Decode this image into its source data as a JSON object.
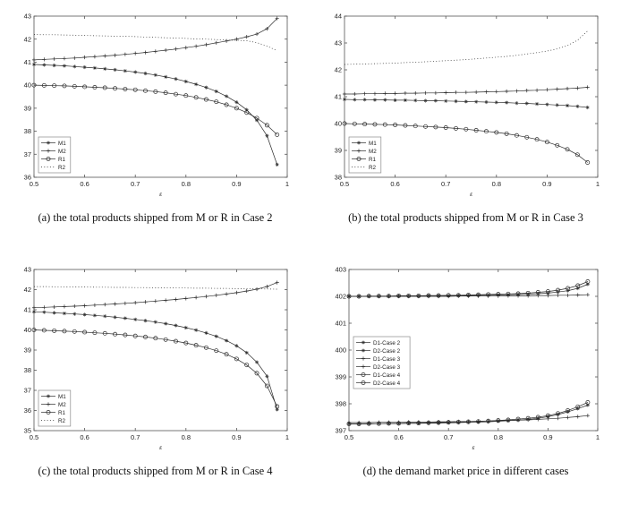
{
  "panels": [
    {
      "caption": "(a)  the total products shipped from M or R in Case 2"
    },
    {
      "caption": "(b)  the total products shipped from M or R in Case 3"
    },
    {
      "caption": "(c)  the total products shipped from M or R in Case 4"
    },
    {
      "caption": "(d)  the demand market price in different cases"
    }
  ],
  "colors": {
    "line": "#2b2b2b",
    "axis": "#555555",
    "legend_border": "#8a8a8a"
  },
  "chart_data": [
    {
      "type": "line",
      "title": "",
      "xlabel": "ε",
      "ylabel": "",
      "xlim": [
        0.5,
        1
      ],
      "ylim": [
        36,
        43
      ],
      "xticks": [
        0.5,
        0.6,
        0.7,
        0.8,
        0.9,
        1
      ],
      "xtick_labels": [
        "0.5",
        "0.6",
        "0.7",
        "0.8",
        "0.9",
        "1"
      ],
      "yticks": [
        36,
        37,
        38,
        39,
        40,
        41,
        42,
        43
      ],
      "grid": false,
      "legend_pos": "sw",
      "x": [
        0.5,
        0.52,
        0.54,
        0.56,
        0.58,
        0.6,
        0.62,
        0.64,
        0.66,
        0.68,
        0.7,
        0.72,
        0.74,
        0.76,
        0.78,
        0.8,
        0.82,
        0.84,
        0.86,
        0.88,
        0.9,
        0.92,
        0.94,
        0.96,
        0.98
      ],
      "series": [
        {
          "name": "M1",
          "marker": "asterisk",
          "line": "solid",
          "values": [
            40.9,
            40.88,
            40.86,
            40.84,
            40.81,
            40.78,
            40.75,
            40.71,
            40.67,
            40.62,
            40.57,
            40.51,
            40.44,
            40.36,
            40.27,
            40.16,
            40.04,
            39.9,
            39.73,
            39.52,
            39.26,
            38.93,
            38.48,
            37.8,
            36.55
          ]
        },
        {
          "name": "M2",
          "marker": "plus",
          "line": "solid",
          "values": [
            41.1,
            41.12,
            41.14,
            41.16,
            41.18,
            41.21,
            41.24,
            41.27,
            41.3,
            41.34,
            41.38,
            41.42,
            41.47,
            41.52,
            41.57,
            41.63,
            41.69,
            41.76,
            41.84,
            41.92,
            42.0,
            42.1,
            42.22,
            42.45,
            42.9
          ]
        },
        {
          "name": "R1",
          "marker": "circle",
          "line": "solid",
          "values": [
            40.0,
            39.99,
            39.98,
            39.97,
            39.95,
            39.93,
            39.91,
            39.89,
            39.86,
            39.83,
            39.8,
            39.76,
            39.72,
            39.67,
            39.61,
            39.55,
            39.47,
            39.38,
            39.28,
            39.15,
            39.0,
            38.81,
            38.57,
            38.26,
            37.85
          ]
        },
        {
          "name": "R2",
          "marker": "none",
          "line": "dotted",
          "values": [
            42.2,
            42.19,
            42.19,
            42.18,
            42.17,
            42.16,
            42.15,
            42.14,
            42.13,
            42.12,
            42.11,
            42.09,
            42.08,
            42.06,
            42.05,
            42.03,
            42.01,
            42.0,
            41.98,
            41.96,
            41.95,
            41.93,
            41.85,
            41.7,
            41.5
          ]
        }
      ]
    },
    {
      "type": "line",
      "title": "",
      "xlabel": "ε",
      "ylabel": "",
      "xlim": [
        0.5,
        1
      ],
      "ylim": [
        38,
        44
      ],
      "xticks": [
        0.5,
        0.6,
        0.7,
        0.8,
        0.9,
        1
      ],
      "xtick_labels": [
        "0.5",
        "0.6",
        "0.7",
        "0.8",
        "0.9",
        "1"
      ],
      "yticks": [
        38,
        39,
        40,
        41,
        42,
        43,
        44
      ],
      "grid": false,
      "legend_pos": "sw",
      "x": [
        0.5,
        0.52,
        0.54,
        0.56,
        0.58,
        0.6,
        0.62,
        0.64,
        0.66,
        0.68,
        0.7,
        0.72,
        0.74,
        0.76,
        0.78,
        0.8,
        0.82,
        0.84,
        0.86,
        0.88,
        0.9,
        0.92,
        0.94,
        0.96,
        0.98
      ],
      "series": [
        {
          "name": "M1",
          "marker": "asterisk",
          "line": "solid",
          "values": [
            40.9,
            40.89,
            40.89,
            40.88,
            40.88,
            40.87,
            40.87,
            40.86,
            40.85,
            40.85,
            40.84,
            40.83,
            40.82,
            40.81,
            40.8,
            40.79,
            40.78,
            40.76,
            40.75,
            40.73,
            40.71,
            40.69,
            40.67,
            40.64,
            40.6
          ]
        },
        {
          "name": "M2",
          "marker": "plus",
          "line": "solid",
          "values": [
            41.1,
            41.1,
            41.11,
            41.11,
            41.12,
            41.12,
            41.13,
            41.13,
            41.14,
            41.14,
            41.15,
            41.16,
            41.16,
            41.17,
            41.18,
            41.19,
            41.2,
            41.21,
            41.23,
            41.24,
            41.26,
            41.28,
            41.3,
            41.32,
            41.35
          ]
        },
        {
          "name": "R1",
          "marker": "circle",
          "line": "solid",
          "values": [
            40.0,
            39.99,
            39.98,
            39.97,
            39.96,
            39.95,
            39.93,
            39.91,
            39.89,
            39.87,
            39.85,
            39.82,
            39.79,
            39.75,
            39.71,
            39.67,
            39.62,
            39.56,
            39.49,
            39.41,
            39.31,
            39.19,
            39.04,
            38.84,
            38.55
          ]
        },
        {
          "name": "R2",
          "marker": "none",
          "line": "dotted",
          "values": [
            42.2,
            42.21,
            42.22,
            42.23,
            42.24,
            42.25,
            42.27,
            42.28,
            42.3,
            42.32,
            42.34,
            42.36,
            42.38,
            42.41,
            42.44,
            42.47,
            42.5,
            42.54,
            42.59,
            42.64,
            42.7,
            42.78,
            42.9,
            43.1,
            43.45
          ]
        }
      ]
    },
    {
      "type": "line",
      "title": "",
      "xlabel": "ε",
      "ylabel": "",
      "xlim": [
        0.5,
        1
      ],
      "ylim": [
        35,
        43
      ],
      "xticks": [
        0.5,
        0.6,
        0.7,
        0.8,
        0.9,
        1
      ],
      "xtick_labels": [
        "0.5",
        "0.6",
        "0.7",
        "0.8",
        "0.9",
        "1"
      ],
      "yticks": [
        35,
        36,
        37,
        38,
        39,
        40,
        41,
        42,
        43
      ],
      "grid": false,
      "legend_pos": "sw",
      "x": [
        0.5,
        0.52,
        0.54,
        0.56,
        0.58,
        0.6,
        0.62,
        0.64,
        0.66,
        0.68,
        0.7,
        0.72,
        0.74,
        0.76,
        0.78,
        0.8,
        0.82,
        0.84,
        0.86,
        0.88,
        0.9,
        0.92,
        0.94,
        0.96,
        0.98
      ],
      "series": [
        {
          "name": "M1",
          "marker": "asterisk",
          "line": "solid",
          "values": [
            40.9,
            40.88,
            40.85,
            40.82,
            40.79,
            40.76,
            40.72,
            40.68,
            40.63,
            40.58,
            40.52,
            40.46,
            40.39,
            40.31,
            40.22,
            40.11,
            39.99,
            39.85,
            39.68,
            39.47,
            39.21,
            38.87,
            38.4,
            37.7,
            36.05
          ]
        },
        {
          "name": "M2",
          "marker": "plus",
          "line": "solid",
          "values": [
            41.1,
            41.12,
            41.14,
            41.16,
            41.18,
            41.2,
            41.23,
            41.26,
            41.29,
            41.32,
            41.35,
            41.39,
            41.43,
            41.47,
            41.51,
            41.56,
            41.61,
            41.66,
            41.72,
            41.78,
            41.85,
            41.93,
            42.02,
            42.15,
            42.35
          ]
        },
        {
          "name": "R1",
          "marker": "circle",
          "line": "solid",
          "values": [
            40.0,
            39.98,
            39.96,
            39.94,
            39.92,
            39.89,
            39.86,
            39.83,
            39.79,
            39.75,
            39.7,
            39.65,
            39.59,
            39.52,
            39.44,
            39.35,
            39.24,
            39.12,
            38.97,
            38.79,
            38.56,
            38.26,
            37.85,
            37.22,
            36.2
          ]
        },
        {
          "name": "R2",
          "marker": "none",
          "line": "dotted",
          "values": [
            42.15,
            42.15,
            42.14,
            42.14,
            42.13,
            42.13,
            42.12,
            42.12,
            42.11,
            42.11,
            42.1,
            42.1,
            42.09,
            42.09,
            42.08,
            42.08,
            42.07,
            42.07,
            42.06,
            42.06,
            42.05,
            42.05,
            42.04,
            42.03,
            42.02
          ]
        }
      ]
    },
    {
      "type": "line",
      "title": "",
      "xlabel": "ε",
      "ylabel": "",
      "xlim": [
        0.5,
        1
      ],
      "ylim": [
        397,
        403
      ],
      "xticks": [
        0.5,
        0.6,
        0.7,
        0.8,
        0.9,
        1
      ],
      "xtick_labels": [
        "0.5",
        "0.6",
        "0.7",
        "0.8",
        "0.9",
        "1"
      ],
      "yticks": [
        397,
        398,
        399,
        400,
        401,
        402,
        403
      ],
      "grid": false,
      "legend_pos": "w",
      "x": [
        0.5,
        0.52,
        0.54,
        0.56,
        0.58,
        0.6,
        0.62,
        0.64,
        0.66,
        0.68,
        0.7,
        0.72,
        0.74,
        0.76,
        0.78,
        0.8,
        0.82,
        0.84,
        0.86,
        0.88,
        0.9,
        0.92,
        0.94,
        0.96,
        0.98
      ],
      "series": [
        {
          "name": "D1-Case 2",
          "marker": "asterisk",
          "line": "solid",
          "values": [
            402.0,
            402.0,
            402.0,
            402.0,
            402.0,
            402.01,
            402.01,
            402.01,
            402.02,
            402.02,
            402.02,
            402.03,
            402.03,
            402.04,
            402.04,
            402.05,
            402.06,
            402.07,
            402.08,
            402.1,
            402.12,
            402.16,
            402.21,
            402.3,
            402.45
          ]
        },
        {
          "name": "D2-Case 2",
          "marker": "asterisk",
          "line": "solid",
          "values": [
            397.25,
            397.25,
            397.25,
            397.26,
            397.26,
            397.26,
            397.27,
            397.27,
            397.28,
            397.28,
            397.29,
            397.3,
            397.31,
            397.32,
            397.33,
            397.35,
            397.37,
            397.39,
            397.42,
            397.46,
            397.52,
            397.6,
            397.7,
            397.82,
            397.95
          ]
        },
        {
          "name": "D1-Case 3",
          "marker": "plus",
          "line": "solid",
          "values": [
            402.0,
            402.0,
            402.0,
            402.0,
            402.0,
            402.0,
            402.0,
            402.0,
            402.0,
            402.0,
            402.0,
            402.01,
            402.01,
            402.01,
            402.01,
            402.01,
            402.02,
            402.02,
            402.02,
            402.03,
            402.03,
            402.04,
            402.04,
            402.05,
            402.06
          ]
        },
        {
          "name": "D2-Case 3",
          "marker": "plus",
          "line": "solid",
          "values": [
            397.3,
            397.3,
            397.3,
            397.31,
            397.31,
            397.31,
            397.32,
            397.32,
            397.32,
            397.33,
            397.33,
            397.34,
            397.34,
            397.35,
            397.36,
            397.37,
            397.38,
            397.39,
            397.4,
            397.42,
            397.44,
            397.46,
            397.49,
            397.52,
            397.56
          ]
        },
        {
          "name": "D1-Case 4",
          "marker": "circle",
          "line": "solid",
          "values": [
            402.0,
            402.0,
            402.01,
            402.01,
            402.01,
            402.02,
            402.02,
            402.02,
            402.03,
            402.03,
            402.04,
            402.04,
            402.05,
            402.06,
            402.07,
            402.08,
            402.09,
            402.1,
            402.12,
            402.15,
            402.18,
            402.23,
            402.3,
            402.4,
            402.55
          ]
        },
        {
          "name": "D2-Case 4",
          "marker": "circle",
          "line": "solid",
          "values": [
            397.25,
            397.25,
            397.26,
            397.26,
            397.27,
            397.27,
            397.28,
            397.28,
            397.29,
            397.3,
            397.31,
            397.32,
            397.33,
            397.34,
            397.36,
            397.38,
            397.4,
            397.43,
            397.46,
            397.5,
            397.56,
            397.64,
            397.75,
            397.89,
            398.05
          ]
        }
      ]
    }
  ]
}
